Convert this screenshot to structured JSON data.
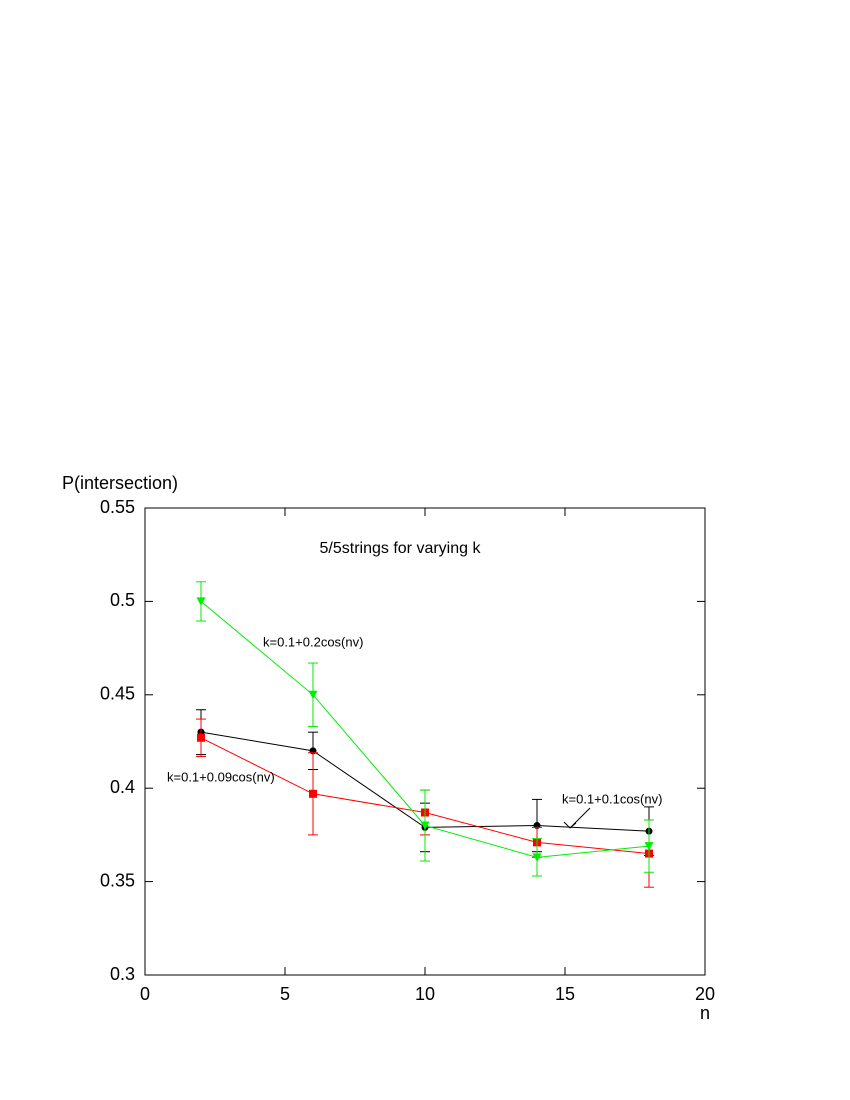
{
  "chart_data": {
    "type": "line",
    "title": "5/5strings for varying k",
    "x_label": "n",
    "y_label": "P(intersection)",
    "xlim": [
      0,
      20
    ],
    "xticks": [
      0,
      5,
      10,
      15,
      20
    ],
    "ylim": [
      0.3,
      0.55
    ],
    "yticks": [
      0.3,
      0.35,
      0.4,
      0.45,
      0.5,
      0.55
    ],
    "x": [
      2,
      6,
      10,
      14,
      18
    ],
    "series": [
      {
        "name": "k=0.1+0.1cos(nv)",
        "color": "#000000",
        "marker": "circle",
        "values": [
          0.43,
          0.42,
          0.379,
          0.38,
          0.377
        ],
        "error": [
          0.012,
          0.01,
          0.013,
          0.014,
          0.013
        ]
      },
      {
        "name": "k=0.1+0.09cos(nv)",
        "color": "#ff0000",
        "marker": "square",
        "values": [
          0.427,
          0.397,
          0.387,
          0.371,
          0.365
        ],
        "error": [
          0.01,
          0.022,
          0.012,
          0.008,
          0.018
        ]
      },
      {
        "name": "k=0.1+0.2cos(nv)",
        "color": "#00ee00",
        "marker": "triangle-down",
        "values": [
          0.5,
          0.45,
          0.38,
          0.363,
          0.369
        ],
        "error": [
          0.0105,
          0.017,
          0.019,
          0.01,
          0.014
        ]
      }
    ]
  }
}
